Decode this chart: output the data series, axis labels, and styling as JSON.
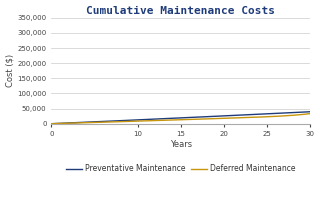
{
  "title": "Cumulative Maintenance Costs",
  "xlabel": "Years",
  "ylabel": "Cost ($)",
  "x_ticks": [
    0,
    10,
    15,
    20,
    25,
    30
  ],
  "xlim": [
    0,
    30
  ],
  "ylim": [
    0,
    350000
  ],
  "yticks": [
    0,
    50000,
    100000,
    150000,
    200000,
    250000,
    300000,
    350000
  ],
  "preventative_color": "#1f3c7a",
  "deferred_color": "#c8960c",
  "background_color": "#ffffff",
  "grid_color": "#cccccc",
  "title_color": "#1f3c7a",
  "legend_labels": [
    "Preventative Maintenance",
    "Deferred Maintenance"
  ],
  "title_fontsize": 8,
  "axis_fontsize": 6,
  "tick_fontsize": 5,
  "legend_fontsize": 5.5
}
